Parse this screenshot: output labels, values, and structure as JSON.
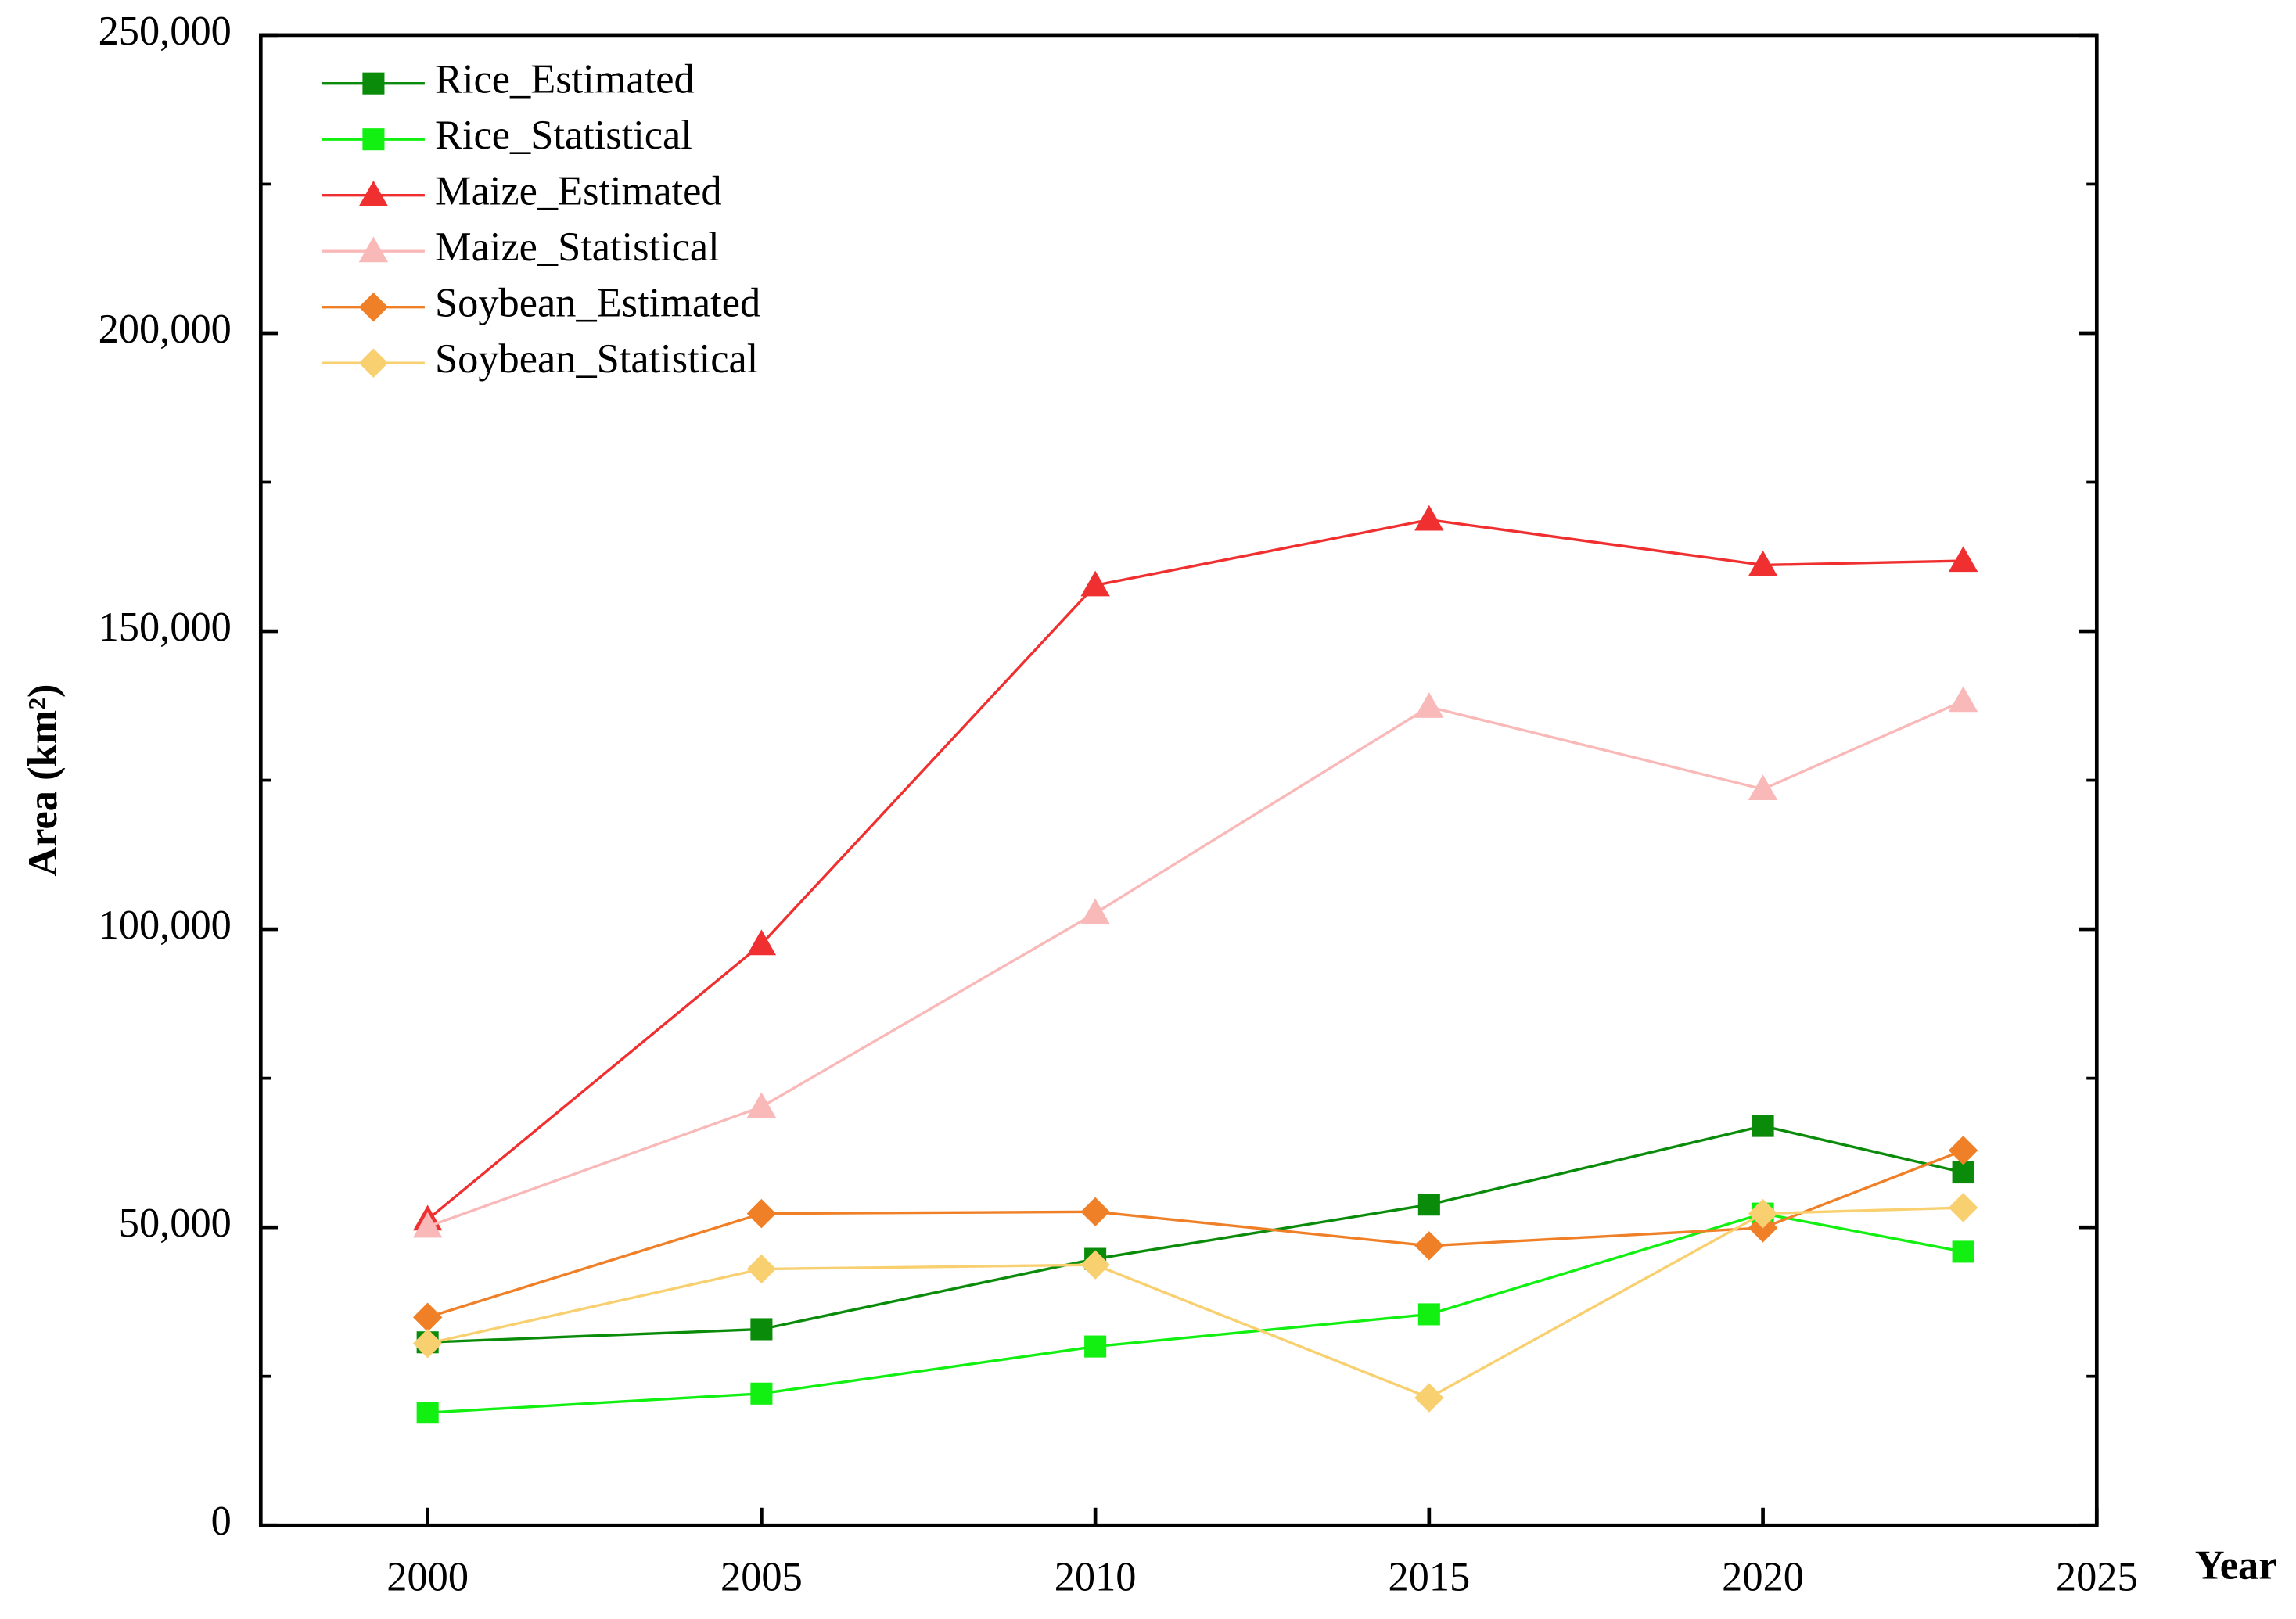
{
  "chart_data": {
    "type": "line",
    "x": [
      2000,
      2005,
      2010,
      2015,
      2020,
      2023
    ],
    "xlabel": "Year",
    "ylabel": "Area (km²)",
    "xlim": [
      1997.5,
      2025
    ],
    "xticks": [
      2000,
      2005,
      2010,
      2015,
      2020,
      2025
    ],
    "ylim": [
      0,
      250000
    ],
    "yticks": [
      0,
      {
        "value": 50000,
        "label": "50,000"
      },
      {
        "value": 100000,
        "label": "100,000"
      },
      {
        "value": 150000,
        "label": "150,000"
      },
      {
        "value": 200000,
        "label": "200,000"
      },
      {
        "value": 250000,
        "label": "250,000"
      }
    ],
    "yminorticks": [
      25000,
      75000,
      125000,
      175000,
      225000
    ],
    "grid": false,
    "legend": "upper left",
    "series": [
      {
        "name": "Rice_Estimated",
        "color": "#0a8c0a",
        "marker": "square",
        "values": [
          30700,
          32900,
          44700,
          53800,
          67000,
          59200
        ]
      },
      {
        "name": "Rice_Statistical",
        "color": "#11f011",
        "marker": "square",
        "values": [
          18900,
          22100,
          30000,
          35400,
          52300,
          45900
        ]
      },
      {
        "name": "Maize_Estimated",
        "color": "#f03030",
        "marker": "triangle",
        "values": [
          51300,
          97500,
          157700,
          168700,
          161100,
          161800
        ]
      },
      {
        "name": "Maize_Statistical",
        "color": "#f9b9b9",
        "marker": "triangle",
        "values": [
          50100,
          70200,
          102700,
          137300,
          123500,
          138300
        ]
      },
      {
        "name": "Soybean_Estimated",
        "color": "#f08028",
        "marker": "diamond",
        "values": [
          34900,
          52300,
          52600,
          46900,
          49900,
          62900
        ]
      },
      {
        "name": "Soybean_Statistical",
        "color": "#f8d070",
        "marker": "diamond",
        "values": [
          30500,
          43000,
          43700,
          21400,
          52300,
          53300
        ]
      }
    ]
  }
}
